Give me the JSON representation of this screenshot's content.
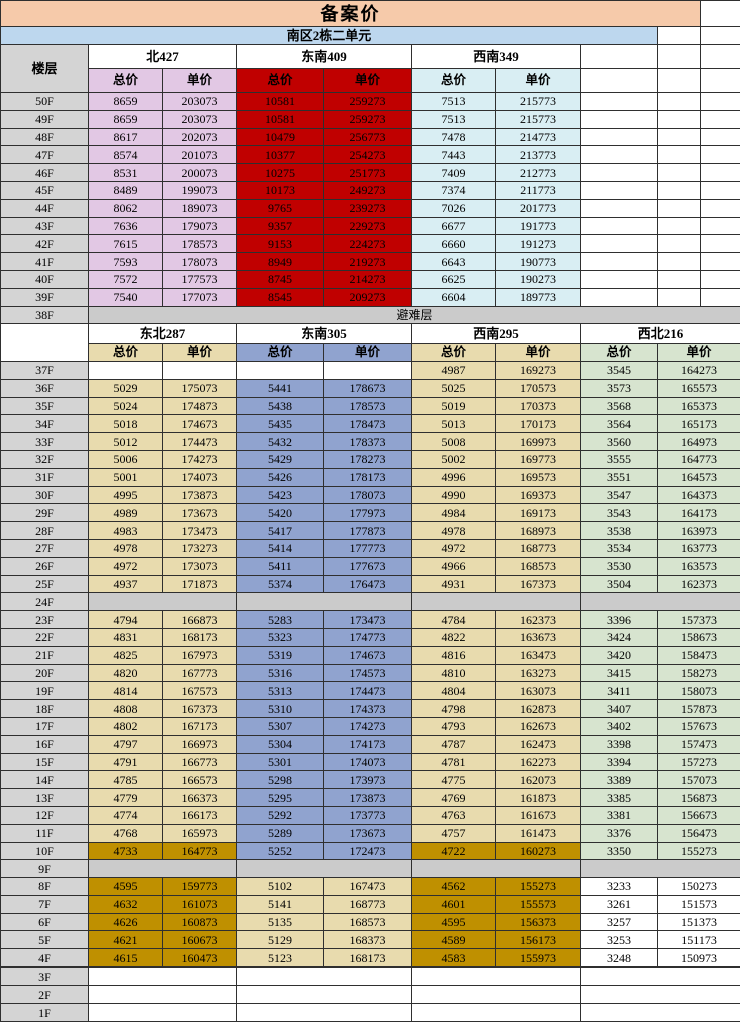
{
  "title": "备案价",
  "subtitle": "南区2栋二单元",
  "floor_header": "楼层",
  "refuge_label": "避难层",
  "refuge_floor": "38F",
  "price_headers": [
    "总价",
    "单价"
  ],
  "palette": {
    "title_bg": "#F6CAAA",
    "subtitle_bg": "#BDD7EE",
    "floor_bg": "#D4D4D4",
    "gray_row": "#CBCBCB",
    "lavender": "#E2C8E4",
    "red": "#C00000",
    "cyan": "#D9EEF3",
    "tan": "#E8DBAE",
    "blue": "#90A3CF",
    "green": "#D7E4CF",
    "gold": "#BF9000",
    "white": "#FFFFFF"
  },
  "top": {
    "groups": [
      "北427",
      "东南409",
      "西南349"
    ],
    "group_colors": [
      "lavender",
      "red",
      "cyan"
    ],
    "rows": [
      {
        "floor": "50F",
        "values": [
          "8659",
          "203073",
          "10581",
          "259273",
          "7513",
          "215773"
        ]
      },
      {
        "floor": "49F",
        "values": [
          "8659",
          "203073",
          "10581",
          "259273",
          "7513",
          "215773"
        ]
      },
      {
        "floor": "48F",
        "values": [
          "8617",
          "202073",
          "10479",
          "256773",
          "7478",
          "214773"
        ]
      },
      {
        "floor": "47F",
        "values": [
          "8574",
          "201073",
          "10377",
          "254273",
          "7443",
          "213773"
        ]
      },
      {
        "floor": "46F",
        "values": [
          "8531",
          "200073",
          "10275",
          "251773",
          "7409",
          "212773"
        ]
      },
      {
        "floor": "45F",
        "values": [
          "8489",
          "199073",
          "10173",
          "249273",
          "7374",
          "211773"
        ]
      },
      {
        "floor": "44F",
        "values": [
          "8062",
          "189073",
          "9765",
          "239273",
          "7026",
          "201773"
        ]
      },
      {
        "floor": "43F",
        "values": [
          "7636",
          "179073",
          "9357",
          "229273",
          "6677",
          "191773"
        ]
      },
      {
        "floor": "42F",
        "values": [
          "7615",
          "178573",
          "9153",
          "224273",
          "6660",
          "191273"
        ]
      },
      {
        "floor": "41F",
        "values": [
          "7593",
          "178073",
          "8949",
          "219273",
          "6643",
          "190773"
        ]
      },
      {
        "floor": "40F",
        "values": [
          "7572",
          "177573",
          "8745",
          "214273",
          "6625",
          "190273"
        ]
      },
      {
        "floor": "39F",
        "values": [
          "7540",
          "177073",
          "8545",
          "209273",
          "6604",
          "189773"
        ]
      }
    ]
  },
  "bottom": {
    "groups": [
      "东北287",
      "东南305",
      "西南295",
      "西北216"
    ],
    "group_colors": [
      "tan",
      "blue",
      "tan",
      "green"
    ],
    "variant_colors": {
      "normal": [
        "tan",
        "blue",
        "tan",
        "green"
      ],
      "f37": [
        "white",
        "white",
        "tan",
        "green"
      ],
      "gold": [
        "gold",
        "blue",
        "gold",
        "green"
      ],
      "low": [
        "gold",
        "tan",
        "gold",
        "white"
      ]
    },
    "rows": [
      {
        "floor": "37F",
        "variant": "f37",
        "values": [
          "",
          "",
          "",
          "",
          "4987",
          "169273",
          "3545",
          "164273"
        ]
      },
      {
        "floor": "36F",
        "values": [
          "5029",
          "175073",
          "5441",
          "178673",
          "5025",
          "170573",
          "3573",
          "165573"
        ]
      },
      {
        "floor": "35F",
        "values": [
          "5024",
          "174873",
          "5438",
          "178573",
          "5019",
          "170373",
          "3568",
          "165373"
        ]
      },
      {
        "floor": "34F",
        "values": [
          "5018",
          "174673",
          "5435",
          "178473",
          "5013",
          "170173",
          "3564",
          "165173"
        ]
      },
      {
        "floor": "33F",
        "values": [
          "5012",
          "174473",
          "5432",
          "178373",
          "5008",
          "169973",
          "3560",
          "164973"
        ]
      },
      {
        "floor": "32F",
        "values": [
          "5006",
          "174273",
          "5429",
          "178273",
          "5002",
          "169773",
          "3555",
          "164773"
        ]
      },
      {
        "floor": "31F",
        "values": [
          "5001",
          "174073",
          "5426",
          "178173",
          "4996",
          "169573",
          "3551",
          "164573"
        ]
      },
      {
        "floor": "30F",
        "values": [
          "4995",
          "173873",
          "5423",
          "178073",
          "4990",
          "169373",
          "3547",
          "164373"
        ]
      },
      {
        "floor": "29F",
        "values": [
          "4989",
          "173673",
          "5420",
          "177973",
          "4984",
          "169173",
          "3543",
          "164173"
        ]
      },
      {
        "floor": "28F",
        "values": [
          "4983",
          "173473",
          "5417",
          "177873",
          "4978",
          "168973",
          "3538",
          "163973"
        ]
      },
      {
        "floor": "27F",
        "values": [
          "4978",
          "173273",
          "5414",
          "177773",
          "4972",
          "168773",
          "3534",
          "163773"
        ]
      },
      {
        "floor": "26F",
        "values": [
          "4972",
          "173073",
          "5411",
          "177673",
          "4966",
          "168573",
          "3530",
          "163573"
        ]
      },
      {
        "floor": "25F",
        "values": [
          "4937",
          "171873",
          "5374",
          "176473",
          "4931",
          "167373",
          "3504",
          "162373"
        ]
      },
      {
        "floor": "24F",
        "type": "gray"
      },
      {
        "floor": "23F",
        "values": [
          "4794",
          "166873",
          "5283",
          "173473",
          "4784",
          "162373",
          "3396",
          "157373"
        ]
      },
      {
        "floor": "22F",
        "values": [
          "4831",
          "168173",
          "5323",
          "174773",
          "4822",
          "163673",
          "3424",
          "158673"
        ]
      },
      {
        "floor": "21F",
        "values": [
          "4825",
          "167973",
          "5319",
          "174673",
          "4816",
          "163473",
          "3420",
          "158473"
        ]
      },
      {
        "floor": "20F",
        "values": [
          "4820",
          "167773",
          "5316",
          "174573",
          "4810",
          "163273",
          "3415",
          "158273"
        ]
      },
      {
        "floor": "19F",
        "values": [
          "4814",
          "167573",
          "5313",
          "174473",
          "4804",
          "163073",
          "3411",
          "158073"
        ]
      },
      {
        "floor": "18F",
        "values": [
          "4808",
          "167373",
          "5310",
          "174373",
          "4798",
          "162873",
          "3407",
          "157873"
        ]
      },
      {
        "floor": "17F",
        "values": [
          "4802",
          "167173",
          "5307",
          "174273",
          "4793",
          "162673",
          "3402",
          "157673"
        ]
      },
      {
        "floor": "16F",
        "values": [
          "4797",
          "166973",
          "5304",
          "174173",
          "4787",
          "162473",
          "3398",
          "157473"
        ]
      },
      {
        "floor": "15F",
        "values": [
          "4791",
          "166773",
          "5301",
          "174073",
          "4781",
          "162273",
          "3394",
          "157273"
        ]
      },
      {
        "floor": "14F",
        "values": [
          "4785",
          "166573",
          "5298",
          "173973",
          "4775",
          "162073",
          "3389",
          "157073"
        ]
      },
      {
        "floor": "13F",
        "values": [
          "4779",
          "166373",
          "5295",
          "173873",
          "4769",
          "161873",
          "3385",
          "156873"
        ]
      },
      {
        "floor": "12F",
        "values": [
          "4774",
          "166173",
          "5292",
          "173773",
          "4763",
          "161673",
          "3381",
          "156673"
        ]
      },
      {
        "floor": "11F",
        "values": [
          "4768",
          "165973",
          "5289",
          "173673",
          "4757",
          "161473",
          "3376",
          "156473"
        ]
      },
      {
        "floor": "10F",
        "variant": "gold",
        "values": [
          "4733",
          "164773",
          "5252",
          "172473",
          "4722",
          "160273",
          "3350",
          "155273"
        ]
      },
      {
        "floor": "9F",
        "type": "gray"
      },
      {
        "floor": "8F",
        "variant": "low",
        "values": [
          "4595",
          "159773",
          "5102",
          "167473",
          "4562",
          "155273",
          "3233",
          "150273"
        ]
      },
      {
        "floor": "7F",
        "variant": "low",
        "values": [
          "4632",
          "161073",
          "5141",
          "168773",
          "4601",
          "155573",
          "3261",
          "151573"
        ]
      },
      {
        "floor": "6F",
        "variant": "low",
        "values": [
          "4626",
          "160873",
          "5135",
          "168573",
          "4595",
          "156373",
          "3257",
          "151373"
        ]
      },
      {
        "floor": "5F",
        "variant": "low",
        "values": [
          "4621",
          "160673",
          "5129",
          "168373",
          "4589",
          "156173",
          "3253",
          "151173"
        ]
      },
      {
        "floor": "4F",
        "variant": "low",
        "values": [
          "4615",
          "160473",
          "5123",
          "168173",
          "4583",
          "155973",
          "3248",
          "150973"
        ]
      },
      {
        "floor": "",
        "type": "blank"
      },
      {
        "floor": "3F",
        "type": "blank"
      },
      {
        "floor": "2F",
        "type": "blank"
      },
      {
        "floor": "1F",
        "type": "blank"
      }
    ]
  }
}
